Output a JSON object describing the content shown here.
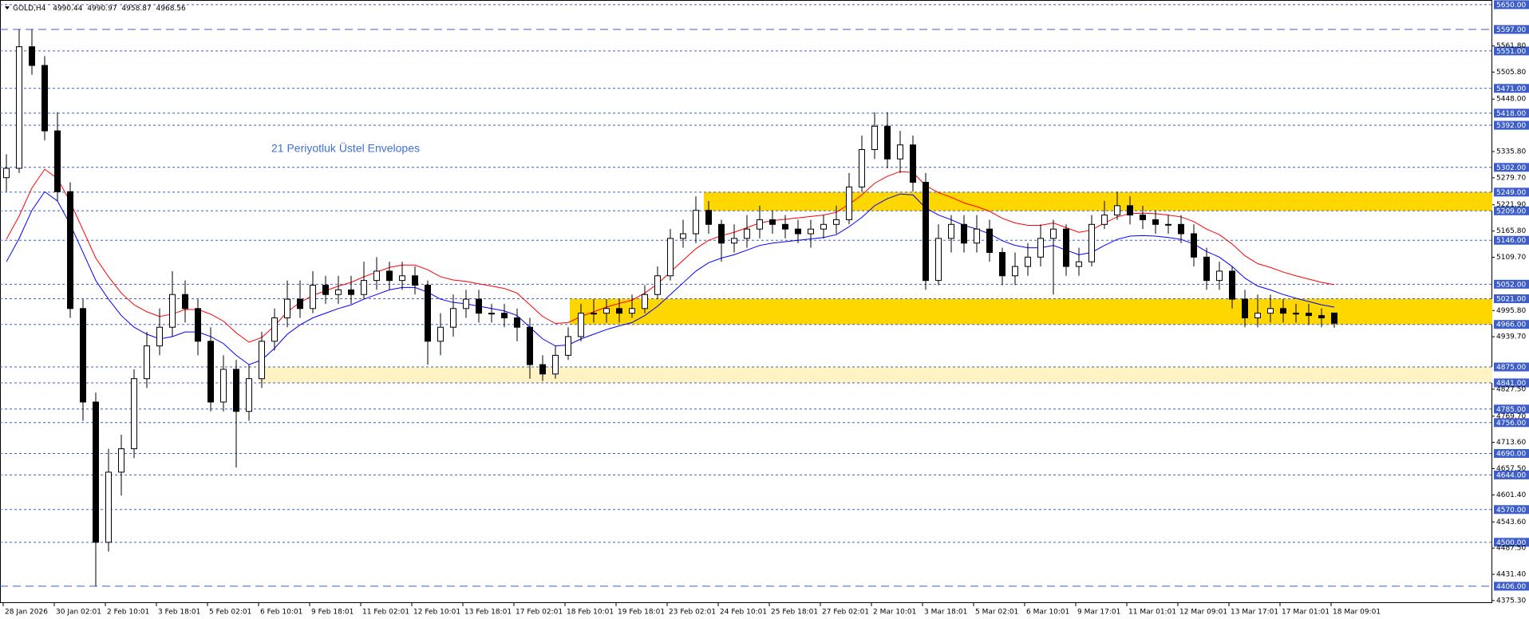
{
  "chart_data": {
    "type": "candlestick",
    "symbol": "GOLD,H4",
    "annotation": "21 Periyotluk Üstel Envelopes",
    "categories": [
      "28 Jan 2026",
      null,
      null,
      null,
      "30 Jan 02:01",
      null,
      null,
      null,
      "2 Feb 10:01",
      null,
      null,
      null,
      "3 Feb 18:01",
      null,
      null,
      null,
      "5 Feb 02:01",
      null,
      null,
      null,
      "6 Feb 10:01",
      null,
      null,
      null,
      "9 Feb 18:01",
      null,
      null,
      null,
      "11 Feb 02:01",
      null,
      null,
      null,
      "12 Feb 10:01",
      null,
      null,
      null,
      "13 Feb 18:01",
      null,
      null,
      null,
      "17 Feb 02:01",
      null,
      null,
      null,
      "18 Feb 10:01",
      null,
      null,
      null,
      "19 Feb 18:01",
      null,
      null,
      null,
      "23 Feb 02:01",
      null,
      null,
      null,
      "24 Feb 10:01",
      null,
      null,
      null,
      "25 Feb 18:01",
      null,
      null,
      null,
      "27 Feb 02:01",
      null,
      null,
      null,
      "2 Mar 10:01",
      null,
      null,
      null,
      "3 Mar 18:01",
      null,
      null,
      null,
      "5 Mar 02:01",
      null,
      null,
      null,
      "6 Mar 10:01",
      null,
      null,
      null,
      "9 Mar 17:01",
      null,
      null,
      null,
      "11 Mar 01:01",
      null,
      null,
      null,
      "12 Mar 09:01",
      null,
      null,
      null,
      "13 Mar 17:01",
      null,
      null,
      null,
      "17 Mar 01:01",
      null,
      null,
      null,
      "18 Mar 09:01"
    ],
    "open": [
      5280,
      5300,
      5560,
      5520,
      5380,
      5250,
      5000,
      4800,
      4500,
      4650,
      4700,
      4850,
      4920,
      4960,
      5030,
      5000,
      4930,
      4800,
      4870,
      4780,
      4850,
      4930,
      4980,
      5020,
      5000,
      5050,
      5030,
      5040,
      5030,
      5060,
      5080,
      5060,
      5070,
      5050,
      4930,
      4960,
      5000,
      5020,
      4990,
      4990,
      4980,
      4960,
      4880,
      4860,
      4900,
      4940,
      4990,
      4990,
      5000,
      4990,
      5000,
      5030,
      5070,
      5150,
      5160,
      5210,
      5180,
      5140,
      5150,
      5170,
      5190,
      5180,
      5170,
      5160,
      5170,
      5180,
      5190,
      5260,
      5340,
      5390,
      5320,
      5350,
      5270,
      5060,
      5150,
      5180,
      5140,
      5170,
      5120,
      5070,
      5090,
      5110,
      5150,
      5170,
      5090,
      5100,
      5180,
      5200,
      5220,
      5200,
      5190,
      5180,
      5180,
      5160,
      5110,
      5060,
      5080,
      5020,
      4980,
      4990,
      5000,
      4990,
      4990,
      4985,
      4990.44
    ],
    "high": [
      5330,
      5597,
      5597,
      5540,
      5420,
      5270,
      5020,
      4820,
      4700,
      4730,
      4870,
      4950,
      5000,
      5080,
      5060,
      5020,
      4960,
      4900,
      4890,
      4880,
      4950,
      5000,
      5060,
      5060,
      5080,
      5070,
      5070,
      5070,
      5100,
      5110,
      5100,
      5100,
      5090,
      5060,
      4990,
      5030,
      5040,
      5040,
      5010,
      5010,
      5000,
      4980,
      4900,
      4920,
      4960,
      5010,
      5020,
      5020,
      5020,
      5030,
      5050,
      5090,
      5170,
      5190,
      5240,
      5230,
      5190,
      5180,
      5200,
      5220,
      5210,
      5200,
      5190,
      5190,
      5200,
      5220,
      5290,
      5370,
      5420,
      5420,
      5380,
      5370,
      5290,
      5180,
      5200,
      5200,
      5200,
      5190,
      5130,
      5120,
      5140,
      5180,
      5190,
      5180,
      5130,
      5200,
      5230,
      5250,
      5240,
      5220,
      5210,
      5200,
      5200,
      5180,
      5130,
      5100,
      5090,
      5040,
      5030,
      5030,
      5020,
      5010,
      5010,
      5000,
      4990.97
    ],
    "low": [
      5250,
      5290,
      5500,
      5360,
      5230,
      4980,
      4760,
      4406,
      4480,
      4600,
      4680,
      4830,
      4900,
      4940,
      4970,
      4900,
      4780,
      4780,
      4660,
      4760,
      4830,
      4910,
      4960,
      4980,
      4990,
      5010,
      5010,
      5010,
      5020,
      5040,
      5040,
      5040,
      5030,
      4880,
      4900,
      4940,
      4980,
      4970,
      4970,
      4960,
      4930,
      4850,
      4845,
      4850,
      4890,
      4930,
      4970,
      4970,
      4970,
      4980,
      4990,
      5020,
      5060,
      5130,
      5140,
      5160,
      5100,
      5120,
      5130,
      5150,
      5160,
      5150,
      5140,
      5130,
      5150,
      5160,
      5180,
      5250,
      5320,
      5300,
      5290,
      5250,
      5040,
      5050,
      5120,
      5120,
      5120,
      5100,
      5050,
      5050,
      5070,
      5090,
      5030,
      5070,
      5070,
      5090,
      5170,
      5190,
      5180,
      5170,
      5160,
      5160,
      5140,
      5090,
      5040,
      5040,
      5000,
      4960,
      4960,
      4970,
      4970,
      4970,
      4965,
      4960,
      4958.87
    ],
    "close": [
      5300,
      5560,
      5520,
      5380,
      5250,
      5000,
      4800,
      4500,
      4650,
      4700,
      4850,
      4920,
      4960,
      5030,
      5000,
      4930,
      4800,
      4870,
      4780,
      4850,
      4930,
      4980,
      5020,
      5000,
      5050,
      5030,
      5040,
      5030,
      5060,
      5080,
      5060,
      5070,
      5050,
      4930,
      4960,
      5000,
      5020,
      4990,
      4990,
      4980,
      4960,
      4880,
      4860,
      4900,
      4940,
      4990,
      4990,
      5000,
      4990,
      5000,
      5030,
      5070,
      5150,
      5160,
      5210,
      5180,
      5140,
      5150,
      5170,
      5190,
      5180,
      5170,
      5160,
      5170,
      5180,
      5190,
      5260,
      5340,
      5390,
      5320,
      5350,
      5270,
      5060,
      5150,
      5180,
      5140,
      5170,
      5120,
      5070,
      5090,
      5110,
      5150,
      5170,
      5090,
      5100,
      5180,
      5200,
      5220,
      5200,
      5190,
      5180,
      5180,
      5160,
      5110,
      5060,
      5080,
      5020,
      4980,
      4990,
      5000,
      4990,
      4990,
      4985,
      4980,
      4968.56
    ],
    "up_color": "#ffffff",
    "down_color": "#000000",
    "envelopes": [
      {
        "color": "#0000ff",
        "values": [
          5100,
          5150,
          5210,
          5250,
          5230,
          5180,
          5120,
          5060,
          5020,
          4985,
          4960,
          4945,
          4935,
          4940,
          4950,
          4950,
          4940,
          4925,
          4900,
          4880,
          4890,
          4915,
          4945,
          4965,
          4980,
          4990,
          5000,
          5008,
          5020,
          5030,
          5040,
          5045,
          5045,
          5035,
          5020,
          5013,
          5010,
          5005,
          5000,
          4995,
          4985,
          4960,
          4935,
          4920,
          4922,
          4935,
          4945,
          4955,
          4963,
          4970,
          4985,
          5005,
          5030,
          5055,
          5080,
          5098,
          5108,
          5115,
          5125,
          5135,
          5140,
          5143,
          5146,
          5149,
          5152,
          5158,
          5175,
          5195,
          5220,
          5235,
          5245,
          5243,
          5215,
          5200,
          5190,
          5178,
          5170,
          5160,
          5145,
          5135,
          5130,
          5130,
          5135,
          5125,
          5115,
          5120,
          5135,
          5148,
          5155,
          5156,
          5155,
          5152,
          5148,
          5138,
          5122,
          5110,
          5090,
          5065,
          5048,
          5040,
          5030,
          5022,
          5015,
          5008,
          5003
        ]
      },
      {
        "color": "#ff0000",
        "values": [
          5148,
          5198,
          5258,
          5298,
          5278,
          5228,
          5168,
          5108,
          5068,
          5033,
          5008,
          4993,
          4983,
          4988,
          4998,
          4998,
          4988,
          4973,
          4948,
          4928,
          4938,
          4963,
          4993,
          5013,
          5028,
          5038,
          5048,
          5056,
          5068,
          5078,
          5088,
          5093,
          5093,
          5083,
          5068,
          5061,
          5058,
          5053,
          5048,
          5043,
          5033,
          5008,
          4983,
          4968,
          4970,
          4983,
          4993,
          5003,
          5011,
          5018,
          5033,
          5053,
          5078,
          5103,
          5128,
          5146,
          5156,
          5163,
          5173,
          5183,
          5188,
          5191,
          5194,
          5197,
          5200,
          5206,
          5223,
          5243,
          5268,
          5283,
          5293,
          5291,
          5263,
          5248,
          5238,
          5226,
          5218,
          5208,
          5193,
          5183,
          5178,
          5178,
          5183,
          5173,
          5163,
          5168,
          5183,
          5196,
          5203,
          5204,
          5203,
          5200,
          5196,
          5186,
          5170,
          5158,
          5138,
          5113,
          5096,
          5088,
          5078,
          5070,
          5063,
          5056,
          5051
        ]
      }
    ],
    "zones": [
      {
        "ylim": [
          5209,
          5249
        ],
        "color": "#ffd700"
      },
      {
        "ylim": [
          4966,
          5021
        ],
        "color": "#ffd700"
      },
      {
        "ylim": [
          4841,
          4875
        ],
        "color": "#fff3c4"
      }
    ],
    "levels": [
      {
        "value": 5650,
        "label": "5650.00"
      },
      {
        "value": 5597,
        "label": "5597.00"
      },
      {
        "value": 5551,
        "label": "5551.00"
      },
      {
        "value": 5471,
        "label": "5471.00"
      },
      {
        "value": 5418,
        "label": "5418.00"
      },
      {
        "value": 5392,
        "label": "5392.00"
      },
      {
        "value": 5302,
        "label": "5302.00"
      },
      {
        "value": 5249,
        "label": "5249.00"
      },
      {
        "value": 5209,
        "label": "5209.00"
      },
      {
        "value": 5146,
        "label": "5146.00"
      },
      {
        "value": 5052,
        "label": "5052.00"
      },
      {
        "value": 5021,
        "label": "5021.00"
      },
      {
        "value": 4966,
        "label": "4966.00"
      },
      {
        "value": 4875,
        "label": "4875.00"
      },
      {
        "value": 4841,
        "label": "4841.00"
      },
      {
        "value": 4785,
        "label": "4785.00"
      },
      {
        "value": 4756,
        "label": "4756.00"
      },
      {
        "value": 4690,
        "label": "4690.00"
      },
      {
        "value": 4644,
        "label": "4644.00"
      },
      {
        "value": 4570,
        "label": "4570.00"
      },
      {
        "value": 4500,
        "label": "4500.00"
      },
      {
        "value": 4406,
        "label": "4406.00"
      }
    ],
    "level_color": "#3d5ec9",
    "ylim": [
      4370,
      5660
    ],
    "yticks": [
      {
        "value": 5561.8,
        "label": "5561.80"
      },
      {
        "value": 5505.8,
        "label": "5505.80"
      },
      {
        "value": 5448,
        "label": "5448.00"
      },
      {
        "value": 5335.8,
        "label": "5335.80"
      },
      {
        "value": 5279.7,
        "label": "5279.70"
      },
      {
        "value": 5221.9,
        "label": "5221.90"
      },
      {
        "value": 5165.8,
        "label": "5165.80"
      },
      {
        "value": 5109.7,
        "label": "5109.70"
      },
      {
        "value": 4995.8,
        "label": "4995.80"
      },
      {
        "value": 4939.7,
        "label": "4939.70"
      },
      {
        "value": 4827.5,
        "label": "4827.50"
      },
      {
        "value": 4769.7,
        "label": "4769.70"
      },
      {
        "value": 4713.6,
        "label": "4713.60"
      },
      {
        "value": 4657.5,
        "label": "4657.50"
      },
      {
        "value": 4601.4,
        "label": "4601.40"
      },
      {
        "value": 4543.6,
        "label": "4543.60"
      },
      {
        "value": 4487.5,
        "label": "4487.50"
      },
      {
        "value": 4431.4,
        "label": "4431.40"
      },
      {
        "value": 4375.3,
        "label": "4375.30"
      }
    ]
  }
}
